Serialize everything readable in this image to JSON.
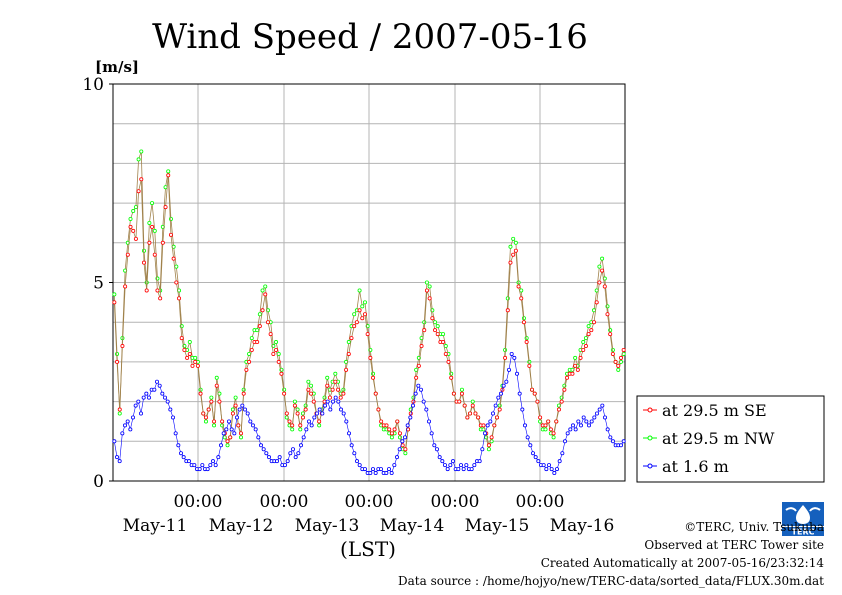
{
  "chart_data": {
    "type": "line",
    "title": "Wind Speed / 2007-05-16",
    "ylabel": "[m/s]",
    "xlabel": "(LST)",
    "ylim": [
      0,
      10
    ],
    "yticks": [
      "0",
      "5",
      "10"
    ],
    "x_ticks": [
      "00:00",
      "00:00",
      "00:00",
      "00:00",
      "00:00"
    ],
    "x_day_labels": [
      "May-11",
      "May-12",
      "May-13",
      "May-14",
      "May-15",
      "May-16"
    ],
    "grid": true,
    "legend_position": "right",
    "series": [
      {
        "name": "at 29.5 m SE",
        "color": "#ff0000",
        "values": [
          4.5,
          3.0,
          1.8,
          3.4,
          4.9,
          5.7,
          6.4,
          6.3,
          6.1,
          7.3,
          7.6,
          5.5,
          4.8,
          6.0,
          6.4,
          5.7,
          4.8,
          4.6,
          6.0,
          6.9,
          7.7,
          6.2,
          5.6,
          5.0,
          4.6,
          3.6,
          3.3,
          3.1,
          3.2,
          2.9,
          3.0,
          2.9,
          2.2,
          1.7,
          1.6,
          1.8,
          2.0,
          1.5,
          2.4,
          2.0,
          1.5,
          1.2,
          1.0,
          1.1,
          1.7,
          1.9,
          1.4,
          1.2,
          2.2,
          2.8,
          3.0,
          3.3,
          3.5,
          3.5,
          3.9,
          4.3,
          4.7,
          4.0,
          3.7,
          3.2,
          3.3,
          3.0,
          2.7,
          2.2,
          1.7,
          1.5,
          1.4,
          1.9,
          1.7,
          1.4,
          1.6,
          1.8,
          2.3,
          2.2,
          2.0,
          1.7,
          1.5,
          1.7,
          2.0,
          2.4,
          2.1,
          2.3,
          2.5,
          2.3,
          2.1,
          2.2,
          2.8,
          3.2,
          3.6,
          3.9,
          4.0,
          4.3,
          4.1,
          4.2,
          3.7,
          3.1,
          2.6,
          2.2,
          1.8,
          1.5,
          1.4,
          1.4,
          1.3,
          1.2,
          1.3,
          1.5,
          1.2,
          0.9,
          0.8,
          1.3,
          1.7,
          2.0,
          2.6,
          2.9,
          3.4,
          3.8,
          4.8,
          4.6,
          4.1,
          3.8,
          3.7,
          3.5,
          3.5,
          3.2,
          3.0,
          2.6,
          2.2,
          2.0,
          2.0,
          2.2,
          1.9,
          1.6,
          1.7,
          1.9,
          1.7,
          1.6,
          1.4,
          1.4,
          1.2,
          0.9,
          1.1,
          1.4,
          1.6,
          1.8,
          2.3,
          3.1,
          4.3,
          5.5,
          5.7,
          5.8,
          4.9,
          4.6,
          4.0,
          3.5,
          2.9,
          2.3,
          2.2,
          2.0,
          1.6,
          1.4,
          1.4,
          1.5,
          1.3,
          1.2,
          1.5,
          1.8,
          2.0,
          2.3,
          2.6,
          2.7,
          2.7,
          2.9,
          2.8,
          3.1,
          3.3,
          3.4,
          3.7,
          3.8,
          4.0,
          4.5,
          5.0,
          5.3,
          4.9,
          4.2,
          3.7,
          3.2,
          3.0,
          2.9,
          3.1,
          3.3
        ]
      },
      {
        "name": "at 29.5 m NW",
        "color": "#00ff00",
        "values": [
          4.7,
          3.2,
          1.7,
          3.6,
          5.3,
          6.0,
          6.6,
          6.8,
          6.9,
          8.1,
          8.3,
          5.8,
          5.0,
          6.5,
          7.0,
          6.3,
          5.1,
          4.8,
          6.4,
          7.4,
          7.8,
          6.6,
          5.9,
          5.4,
          4.8,
          3.9,
          3.4,
          3.3,
          3.5,
          3.1,
          3.1,
          3.0,
          2.3,
          1.7,
          1.5,
          1.8,
          2.1,
          1.4,
          2.6,
          2.2,
          1.4,
          1.1,
          0.9,
          1.1,
          1.8,
          2.1,
          1.4,
          1.1,
          2.3,
          3.0,
          3.2,
          3.6,
          3.8,
          3.8,
          4.2,
          4.8,
          4.9,
          4.3,
          4.0,
          3.4,
          3.5,
          3.2,
          2.8,
          2.3,
          1.6,
          1.4,
          1.3,
          2.0,
          1.8,
          1.3,
          1.7,
          1.9,
          2.5,
          2.4,
          2.2,
          1.7,
          1.4,
          1.8,
          2.1,
          2.6,
          2.3,
          2.5,
          2.7,
          2.5,
          2.2,
          2.3,
          3.0,
          3.5,
          3.9,
          4.2,
          4.3,
          4.8,
          4.4,
          4.5,
          3.9,
          3.3,
          2.7,
          2.2,
          1.8,
          1.4,
          1.3,
          1.3,
          1.2,
          1.1,
          1.2,
          1.5,
          1.1,
          0.8,
          0.7,
          1.3,
          1.8,
          2.1,
          2.8,
          3.1,
          3.6,
          4.0,
          5.0,
          4.9,
          4.3,
          4.0,
          3.9,
          3.7,
          3.7,
          3.4,
          3.2,
          2.7,
          2.2,
          2.0,
          2.0,
          2.3,
          1.9,
          1.6,
          1.7,
          2.0,
          1.7,
          1.6,
          1.3,
          1.3,
          1.1,
          0.8,
          1.0,
          1.4,
          1.6,
          1.9,
          2.4,
          3.3,
          4.6,
          5.9,
          6.1,
          6.0,
          5.0,
          4.8,
          4.1,
          3.6,
          3.0,
          2.3,
          2.2,
          2.0,
          1.5,
          1.3,
          1.3,
          1.5,
          1.2,
          1.1,
          1.5,
          1.9,
          2.1,
          2.4,
          2.7,
          2.8,
          2.8,
          3.1,
          2.9,
          3.3,
          3.5,
          3.6,
          3.9,
          4.0,
          4.3,
          4.8,
          5.4,
          5.6,
          5.1,
          4.4,
          3.8,
          3.3,
          3.0,
          2.8,
          3.0,
          3.2
        ]
      },
      {
        "name": "at 1.6 m",
        "color": "#0000ff",
        "values": [
          1.0,
          0.6,
          0.5,
          1.2,
          1.4,
          1.5,
          1.3,
          1.6,
          1.9,
          2.0,
          1.7,
          2.1,
          2.2,
          2.1,
          2.3,
          2.3,
          2.5,
          2.4,
          2.2,
          2.1,
          2.0,
          1.8,
          1.6,
          1.2,
          0.9,
          0.7,
          0.6,
          0.5,
          0.5,
          0.4,
          0.4,
          0.3,
          0.3,
          0.4,
          0.3,
          0.3,
          0.4,
          0.5,
          0.4,
          0.6,
          0.9,
          1.2,
          1.3,
          1.5,
          1.3,
          1.2,
          1.6,
          1.8,
          1.9,
          1.8,
          1.7,
          1.5,
          1.4,
          1.3,
          1.1,
          0.9,
          0.8,
          0.7,
          0.6,
          0.5,
          0.5,
          0.5,
          0.6,
          0.4,
          0.4,
          0.5,
          0.7,
          0.8,
          0.6,
          0.7,
          0.9,
          1.1,
          1.3,
          1.5,
          1.4,
          1.6,
          1.7,
          1.8,
          1.7,
          1.9,
          2.0,
          1.8,
          2.0,
          2.1,
          2.0,
          1.8,
          1.7,
          1.5,
          1.2,
          0.9,
          0.7,
          0.5,
          0.4,
          0.3,
          0.3,
          0.2,
          0.2,
          0.3,
          0.2,
          0.3,
          0.3,
          0.2,
          0.2,
          0.3,
          0.2,
          0.4,
          0.6,
          0.8,
          1.0,
          1.1,
          1.4,
          1.6,
          1.9,
          2.2,
          2.4,
          2.3,
          2.0,
          1.8,
          1.5,
          1.2,
          0.9,
          0.8,
          0.6,
          0.5,
          0.4,
          0.3,
          0.4,
          0.5,
          0.3,
          0.3,
          0.4,
          0.3,
          0.4,
          0.3,
          0.3,
          0.4,
          0.5,
          0.5,
          0.8,
          1.2,
          1.4,
          1.5,
          1.7,
          1.9,
          2.1,
          2.2,
          2.4,
          2.5,
          2.8,
          3.2,
          3.1,
          2.7,
          2.2,
          1.8,
          1.4,
          1.1,
          0.9,
          0.7,
          0.6,
          0.5,
          0.4,
          0.4,
          0.3,
          0.4,
          0.3,
          0.2,
          0.3,
          0.5,
          0.7,
          1.0,
          1.2,
          1.3,
          1.4,
          1.3,
          1.5,
          1.4,
          1.6,
          1.5,
          1.4,
          1.5,
          1.6,
          1.7,
          1.8,
          1.9,
          1.6,
          1.3,
          1.1,
          1.0,
          0.9,
          0.9,
          0.9,
          1.0
        ]
      }
    ]
  },
  "footer": {
    "copyright": "©TERC, Univ. Tsukuba",
    "observed": "Observed at TERC Tower site",
    "created": "Created Automatically at 2007-05-16/23:32:14",
    "source": "Data source : /home/hojyo/new/TERC-data/sorted_data/FLUX.30m.dat"
  },
  "logo": {
    "text": "TERC"
  }
}
